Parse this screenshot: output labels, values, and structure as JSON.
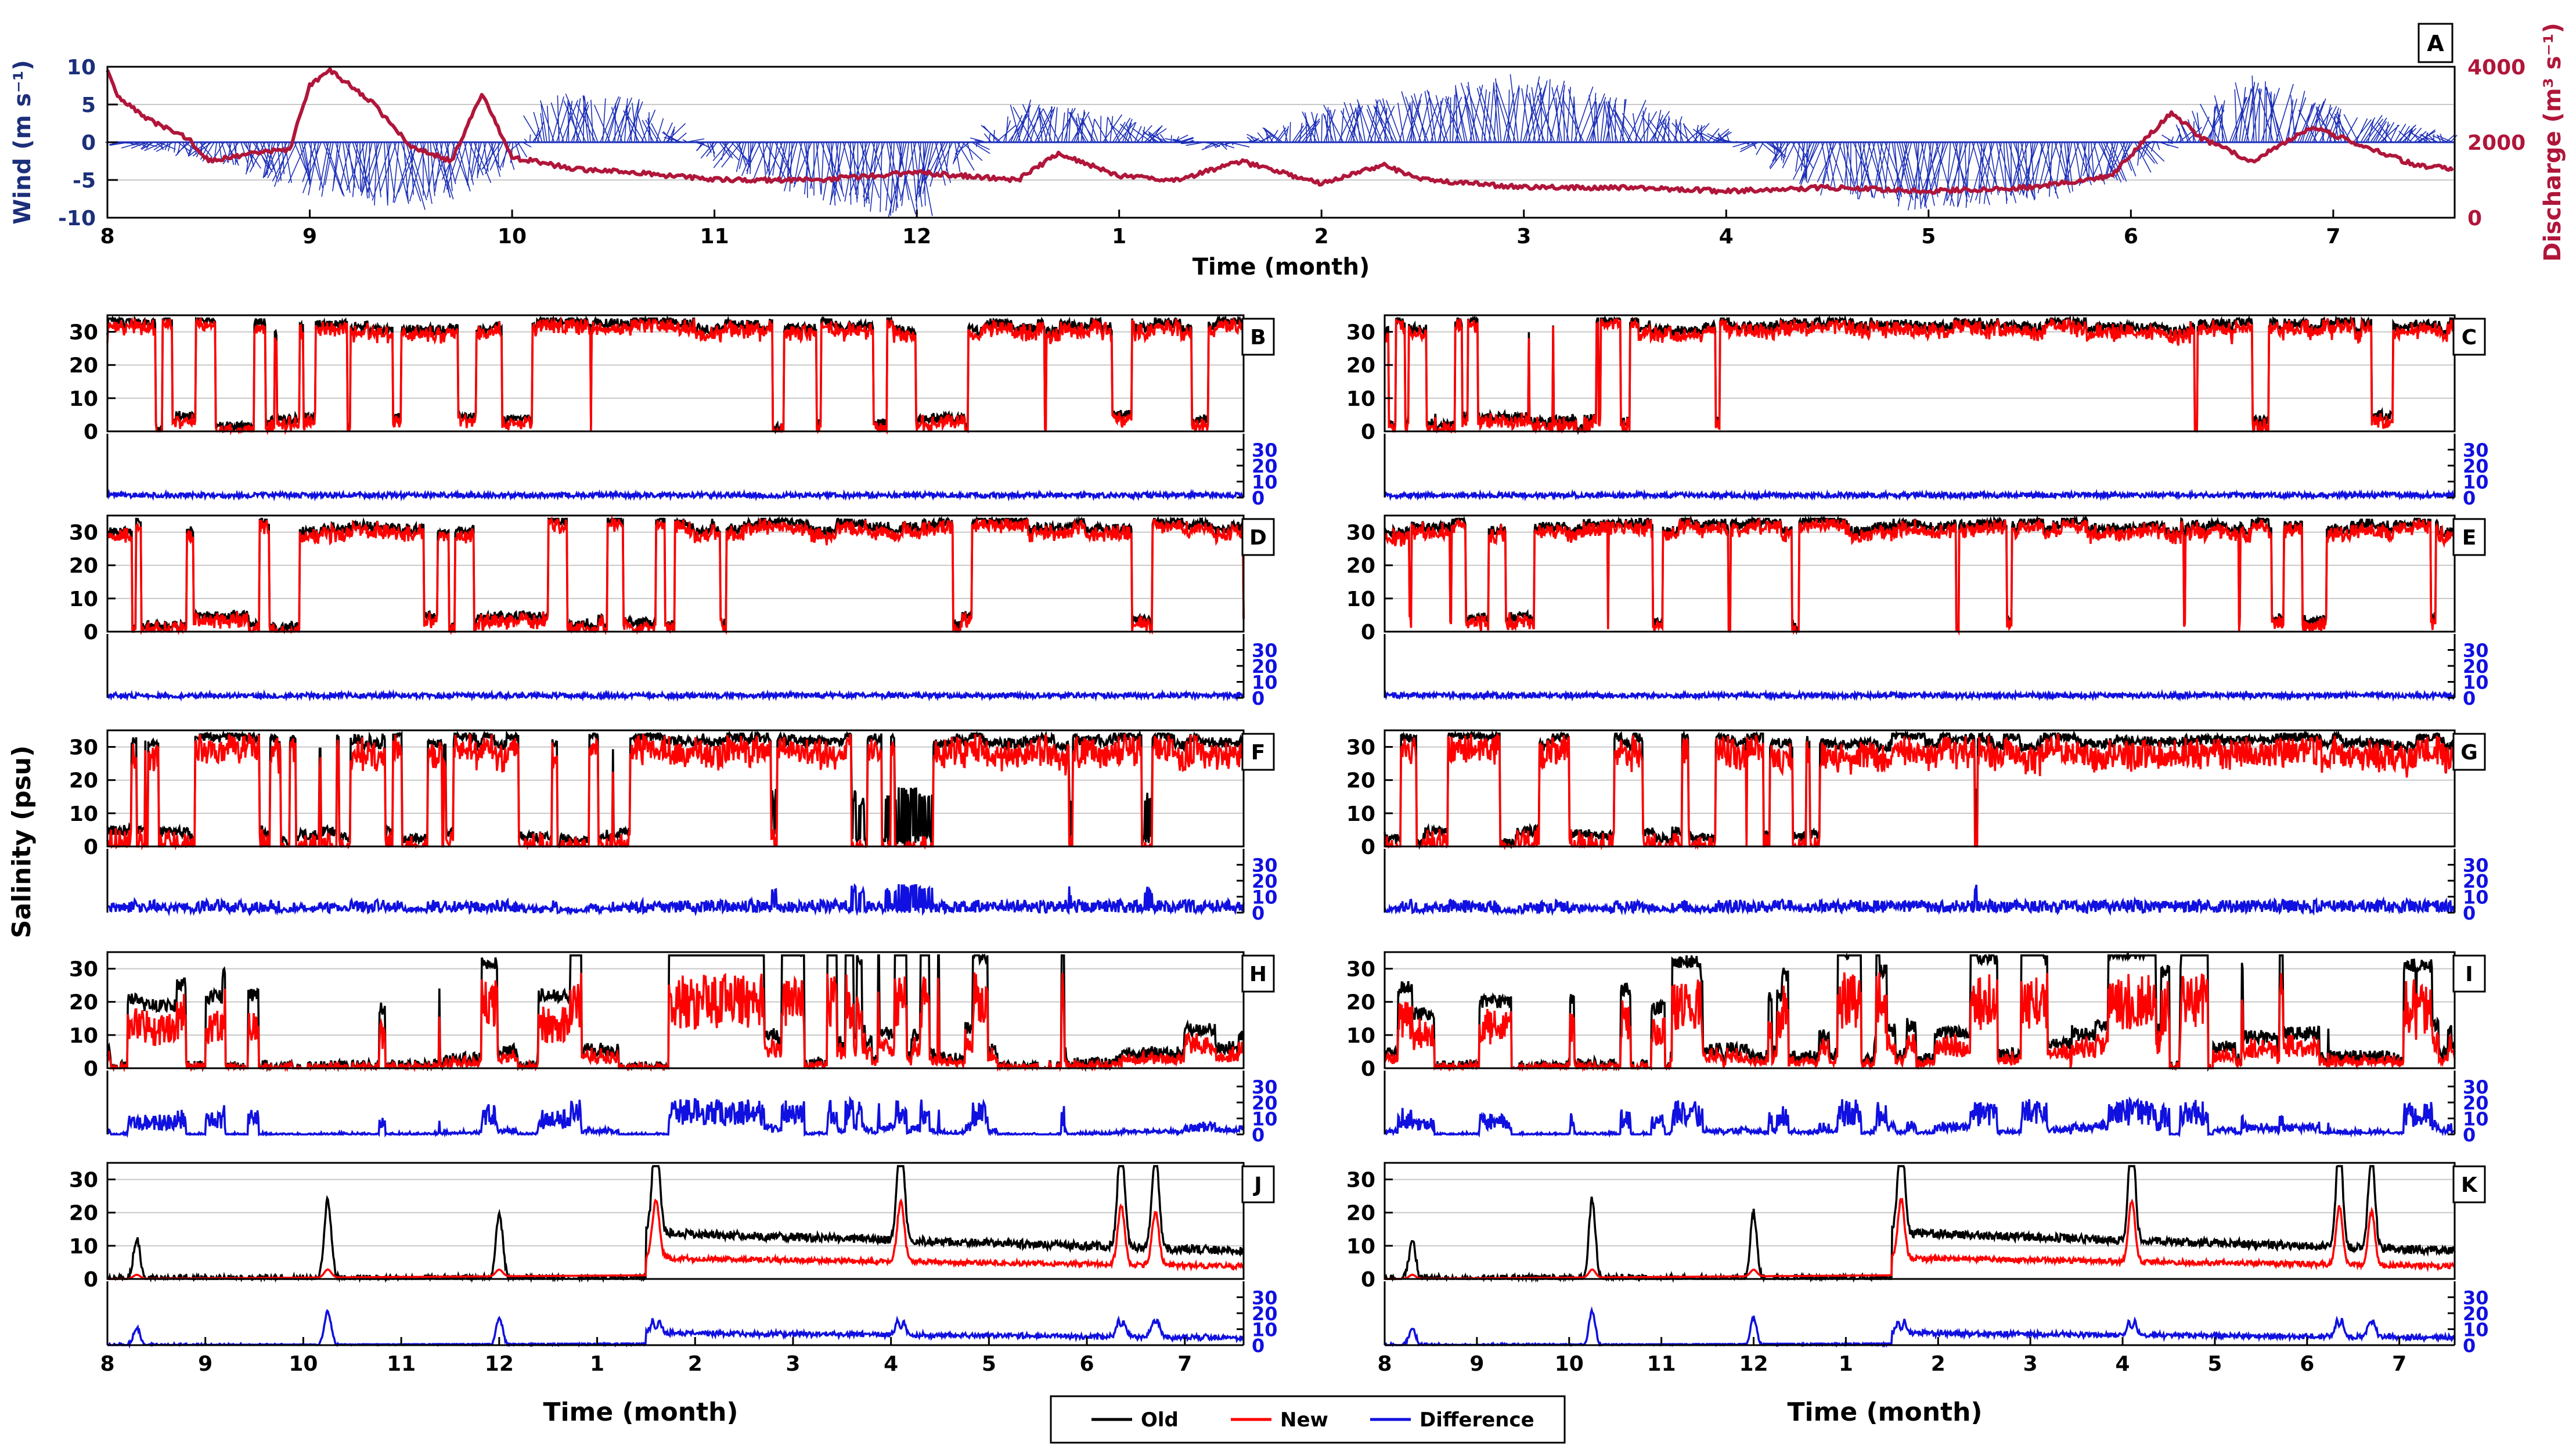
{
  "chart_data": [
    {
      "id": "A",
      "type": "line",
      "panel_label": "A",
      "xlabel": "Time (month)",
      "x_ticks": [
        "8",
        "9",
        "10",
        "11",
        "12",
        "1",
        "2",
        "3",
        "4",
        "5",
        "6",
        "7"
      ],
      "x_range": [
        8,
        19.6
      ],
      "ylabel_left": "Wind (m s⁻¹)",
      "ylabel_right": "Discharge (m³ s⁻¹)",
      "y_left_ticks": [
        "10",
        "5",
        "0",
        "-5",
        "-10"
      ],
      "y_left_range": [
        -10,
        10
      ],
      "y_right_ticks": [
        "4000",
        "2000",
        "0"
      ],
      "y_right_range": [
        0,
        4000
      ],
      "series": [
        {
          "name": "Wind",
          "color": "#1c2fb8",
          "note": "Wind vectors, illustrative pattern",
          "envelope_x": [
            8,
            8.5,
            9,
            9.5,
            10,
            10.2,
            10.6,
            11,
            11.5,
            12,
            12.5,
            13,
            13.5,
            14,
            14.5,
            15,
            15.5,
            16,
            16.5,
            17,
            17.5,
            18,
            18.3,
            18.6,
            19,
            19.5
          ],
          "envelope_v": [
            0,
            -2,
            -6,
            -8,
            -3,
            6,
            5,
            -2,
            -7,
            -9,
            5,
            3,
            -1,
            4,
            6,
            8,
            5,
            1,
            -6,
            -8,
            -7,
            -4,
            3,
            8,
            4,
            1
          ]
        },
        {
          "name": "Discharge",
          "color": "#b0163a",
          "x": [
            8,
            8.05,
            8.2,
            8.4,
            8.5,
            8.7,
            8.9,
            9.0,
            9.1,
            9.3,
            9.5,
            9.7,
            9.85,
            10.0,
            10.3,
            10.6,
            11.0,
            11.5,
            12.0,
            12.5,
            12.7,
            13.0,
            13.3,
            13.6,
            14.0,
            14.3,
            14.5,
            15.0,
            15.5,
            16.0,
            16.5,
            17.0,
            17.5,
            17.9,
            18.2,
            18.35,
            18.6,
            18.9,
            19.1,
            19.4,
            19.6
          ],
          "values": [
            3900,
            3200,
            2600,
            2100,
            1500,
            1700,
            1800,
            3500,
            3900,
            3100,
            1900,
            1500,
            3300,
            1600,
            1300,
            1200,
            1000,
            1000,
            1200,
            1000,
            1700,
            1100,
            1000,
            1500,
            900,
            1400,
            1000,
            800,
            800,
            700,
            800,
            700,
            800,
            1100,
            2800,
            2100,
            1500,
            2400,
            2000,
            1400,
            1300
          ]
        }
      ]
    },
    {
      "id": "B",
      "type": "line",
      "panel_label": "B",
      "seed": 11,
      "kind": "high",
      "y_ticks": [
        "30",
        "20",
        "10",
        "0"
      ],
      "y_range": [
        0,
        35
      ],
      "y_right_ticks": [
        "30",
        "20",
        "10",
        "0"
      ],
      "y_right_range": [
        0,
        40
      ],
      "series": [
        {
          "name": "Old",
          "color": "#000000",
          "note": "Salinity, illustrative pattern"
        },
        {
          "name": "New",
          "color": "#ff0000",
          "note": "Salinity, illustrative pattern"
        },
        {
          "name": "Difference",
          "color": "#1010e0",
          "note": "Absolute difference, illustrative pattern"
        }
      ]
    },
    {
      "id": "C",
      "type": "line",
      "panel_label": "C",
      "seed": 12,
      "kind": "high",
      "y_ticks": [
        "30",
        "20",
        "10",
        "0"
      ],
      "y_range": [
        0,
        35
      ],
      "y_right_ticks": [
        "30",
        "20",
        "10",
        "0"
      ],
      "y_right_range": [
        0,
        40
      ],
      "series": [
        {
          "name": "Old",
          "color": "#000000",
          "note": "Salinity, illustrative pattern"
        },
        {
          "name": "New",
          "color": "#ff0000",
          "note": "Salinity, illustrative pattern"
        },
        {
          "name": "Difference",
          "color": "#1010e0",
          "note": "Absolute difference, illustrative pattern"
        }
      ]
    },
    {
      "id": "D",
      "type": "line",
      "panel_label": "D",
      "seed": 21,
      "kind": "high",
      "y_ticks": [
        "30",
        "20",
        "10",
        "0"
      ],
      "y_range": [
        0,
        35
      ],
      "y_right_ticks": [
        "30",
        "20",
        "10",
        "0"
      ],
      "y_right_range": [
        0,
        40
      ],
      "series": [
        {
          "name": "Old",
          "color": "#000000",
          "note": "Salinity, illustrative pattern"
        },
        {
          "name": "New",
          "color": "#ff0000",
          "note": "Salinity, illustrative pattern"
        },
        {
          "name": "Difference",
          "color": "#1010e0",
          "note": "Absolute difference, illustrative pattern"
        }
      ]
    },
    {
      "id": "E",
      "type": "line",
      "panel_label": "E",
      "seed": 22,
      "kind": "high",
      "y_ticks": [
        "30",
        "20",
        "10",
        "0"
      ],
      "y_range": [
        0,
        35
      ],
      "y_right_ticks": [
        "30",
        "20",
        "10",
        "0"
      ],
      "y_right_range": [
        0,
        40
      ],
      "series": [
        {
          "name": "Old",
          "color": "#000000",
          "note": "Salinity, illustrative pattern"
        },
        {
          "name": "New",
          "color": "#ff0000",
          "note": "Salinity, illustrative pattern"
        },
        {
          "name": "Difference",
          "color": "#1010e0",
          "note": "Absolute difference, illustrative pattern"
        }
      ]
    },
    {
      "id": "F",
      "type": "line",
      "panel_label": "F",
      "seed": 31,
      "kind": "mid",
      "y_ticks": [
        "30",
        "20",
        "10",
        "0"
      ],
      "y_range": [
        0,
        35
      ],
      "y_right_ticks": [
        "30",
        "20",
        "10",
        "0"
      ],
      "y_right_range": [
        0,
        40
      ],
      "series": [
        {
          "name": "Old",
          "color": "#000000",
          "note": "Salinity, illustrative pattern"
        },
        {
          "name": "New",
          "color": "#ff0000",
          "note": "Salinity, illustrative pattern"
        },
        {
          "name": "Difference",
          "color": "#1010e0",
          "note": "Absolute difference, illustrative pattern"
        }
      ]
    },
    {
      "id": "G",
      "type": "line",
      "panel_label": "G",
      "seed": 32,
      "kind": "mid",
      "y_ticks": [
        "30",
        "20",
        "10",
        "0"
      ],
      "y_range": [
        0,
        35
      ],
      "y_right_ticks": [
        "30",
        "20",
        "10",
        "0"
      ],
      "y_right_range": [
        0,
        40
      ],
      "series": [
        {
          "name": "Old",
          "color": "#000000",
          "note": "Salinity, illustrative pattern"
        },
        {
          "name": "New",
          "color": "#ff0000",
          "note": "Salinity, illustrative pattern"
        },
        {
          "name": "Difference",
          "color": "#1010e0",
          "note": "Absolute difference, illustrative pattern"
        }
      ]
    },
    {
      "id": "H",
      "type": "line",
      "panel_label": "H",
      "seed": 41,
      "kind": "low",
      "y_ticks": [
        "30",
        "20",
        "10",
        "0"
      ],
      "y_range": [
        0,
        35
      ],
      "y_right_ticks": [
        "30",
        "20",
        "10",
        "0"
      ],
      "y_right_range": [
        0,
        40
      ],
      "series": [
        {
          "name": "Old",
          "color": "#000000",
          "note": "Salinity, illustrative pattern"
        },
        {
          "name": "New",
          "color": "#ff0000",
          "note": "Salinity, illustrative pattern"
        },
        {
          "name": "Difference",
          "color": "#1010e0",
          "note": "Absolute difference, illustrative pattern"
        }
      ]
    },
    {
      "id": "I",
      "type": "line",
      "panel_label": "I",
      "seed": 42,
      "kind": "low",
      "y_ticks": [
        "30",
        "20",
        "10",
        "0"
      ],
      "y_range": [
        0,
        35
      ],
      "y_right_ticks": [
        "30",
        "20",
        "10",
        "0"
      ],
      "y_right_range": [
        0,
        40
      ],
      "series": [
        {
          "name": "Old",
          "color": "#000000",
          "note": "Salinity, illustrative pattern"
        },
        {
          "name": "New",
          "color": "#ff0000",
          "note": "Salinity, illustrative pattern"
        },
        {
          "name": "Difference",
          "color": "#1010e0",
          "note": "Absolute difference, illustrative pattern"
        }
      ]
    },
    {
      "id": "J",
      "type": "line",
      "panel_label": "J",
      "seed": 51,
      "kind": "river",
      "y_ticks": [
        "30",
        "20",
        "10",
        "0"
      ],
      "y_range": [
        0,
        35
      ],
      "y_right_ticks": [
        "30",
        "20",
        "10",
        "0"
      ],
      "y_right_range": [
        0,
        40
      ],
      "x_ticks": [
        "8",
        "9",
        "10",
        "11",
        "12",
        "1",
        "2",
        "3",
        "4",
        "5",
        "6",
        "7"
      ],
      "x_range": [
        8,
        19.6
      ],
      "xlabel": "Time (month)",
      "series": [
        {
          "name": "Old",
          "color": "#000000",
          "note": "Salinity, illustrative pattern"
        },
        {
          "name": "New",
          "color": "#ff0000",
          "note": "Salinity, illustrative pattern"
        },
        {
          "name": "Difference",
          "color": "#1010e0",
          "note": "Absolute difference, illustrative pattern"
        }
      ]
    },
    {
      "id": "K",
      "type": "line",
      "panel_label": "K",
      "seed": 52,
      "kind": "river",
      "y_ticks": [
        "30",
        "20",
        "10",
        "0"
      ],
      "y_range": [
        0,
        35
      ],
      "y_right_ticks": [
        "30",
        "20",
        "10",
        "0"
      ],
      "y_right_range": [
        0,
        40
      ],
      "x_ticks": [
        "8",
        "9",
        "10",
        "11",
        "12",
        "1",
        "2",
        "3",
        "4",
        "5",
        "6",
        "7"
      ],
      "x_range": [
        8,
        19.6
      ],
      "xlabel": "Time (month)",
      "series": [
        {
          "name": "Old",
          "color": "#000000",
          "note": "Salinity, illustrative pattern"
        },
        {
          "name": "New",
          "color": "#ff0000",
          "note": "Salinity, illustrative pattern"
        },
        {
          "name": "Difference",
          "color": "#1010e0",
          "note": "Absolute difference, illustrative pattern"
        }
      ]
    }
  ],
  "figure": {
    "shared_ylabel": "Salinity (psu)",
    "legend": [
      {
        "label": "Old",
        "color": "#000000"
      },
      {
        "label": "New",
        "color": "#ff0000"
      },
      {
        "label": "Difference",
        "color": "#1010e0"
      }
    ],
    "colors": {
      "wind_axis": "#1c2f7a",
      "discharge_axis": "#b0163a",
      "diff_axis": "#1010e0",
      "grid": "#c8c8c8"
    }
  }
}
